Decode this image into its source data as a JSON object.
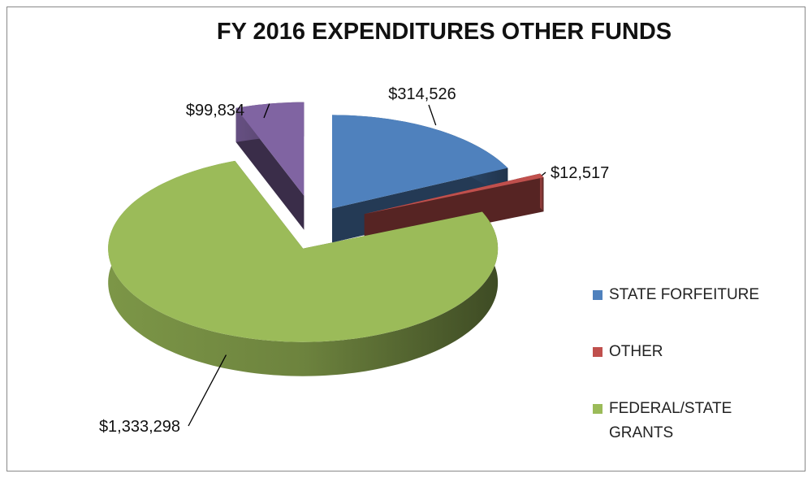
{
  "chart_data": {
    "type": "pie3d",
    "title": "FY 2016 EXPENDITURES  OTHER FUNDS",
    "categories": [
      "STATE FORFEITURE",
      "OTHER",
      "FEDERAL/STATE GRANTS",
      null
    ],
    "values": [
      314526,
      12517,
      1333298,
      99834
    ],
    "value_labels": [
      "$314,526",
      "$12,517",
      "$1,333,298",
      "$99,834"
    ],
    "colors": [
      "#4f81bd",
      "#c0504d",
      "#9bbb59",
      "#8064a2"
    ],
    "legend": "right"
  }
}
